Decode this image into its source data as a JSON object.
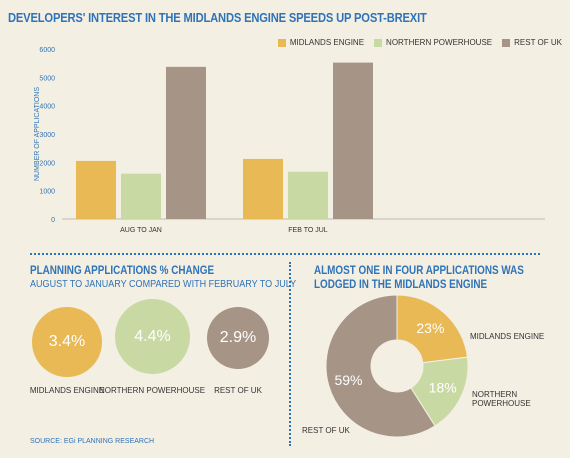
{
  "title": "DEVELOPERS' INTEREST IN THE MIDLANDS ENGINE SPEEDS UP POST-BREXIT",
  "colors": {
    "midlands": "#e8b955",
    "northern": "#c9d9a4",
    "rest": "#a69486",
    "accent": "#2f73b8"
  },
  "chart_data": [
    {
      "type": "bar",
      "categories": [
        "AUG TO JAN",
        "FEB TO JUL"
      ],
      "series": [
        {
          "name": "MIDLANDS ENGINE",
          "values": [
            2050,
            2120
          ]
        },
        {
          "name": "NORTHERN POWERHOUSE",
          "values": [
            1600,
            1670
          ]
        },
        {
          "name": "REST OF UK",
          "values": [
            5370,
            5520
          ]
        }
      ],
      "ylabel": "NUMBER OF APPLICATIONS",
      "ylim": [
        0,
        6000
      ],
      "yticks": [
        "0",
        "1000",
        "2000",
        "3000",
        "4000",
        "5000",
        "6000"
      ],
      "grid": false,
      "legend": "top-right"
    },
    {
      "type": "bubble",
      "title": "PLANNING APPLICATIONS % CHANGE",
      "subtitle": "AUGUST TO JANUARY COMPARED WITH FEBRUARY TO JULY",
      "items": [
        {
          "label": "MIDLANDS ENGINE",
          "value": "3.4%"
        },
        {
          "label": "NORTHERN POWERHOUSE",
          "value": "4.4%"
        },
        {
          "label": "REST OF UK",
          "value": "2.9%"
        }
      ]
    },
    {
      "type": "pie",
      "title_line1": "ALMOST ONE IN FOUR APPLICATIONS WAS",
      "title_line2": "LODGED IN THE MIDLANDS ENGINE",
      "slices": [
        {
          "label": "MIDLANDS ENGINE",
          "value": 23,
          "text": "23%"
        },
        {
          "label": "NORTHERN POWERHOUSE",
          "value": 18,
          "text": "18%"
        },
        {
          "label": "REST OF UK",
          "value": 59,
          "text": "59%"
        }
      ]
    }
  ],
  "source": "SOURCE: EGi PLANNING RESEARCH"
}
